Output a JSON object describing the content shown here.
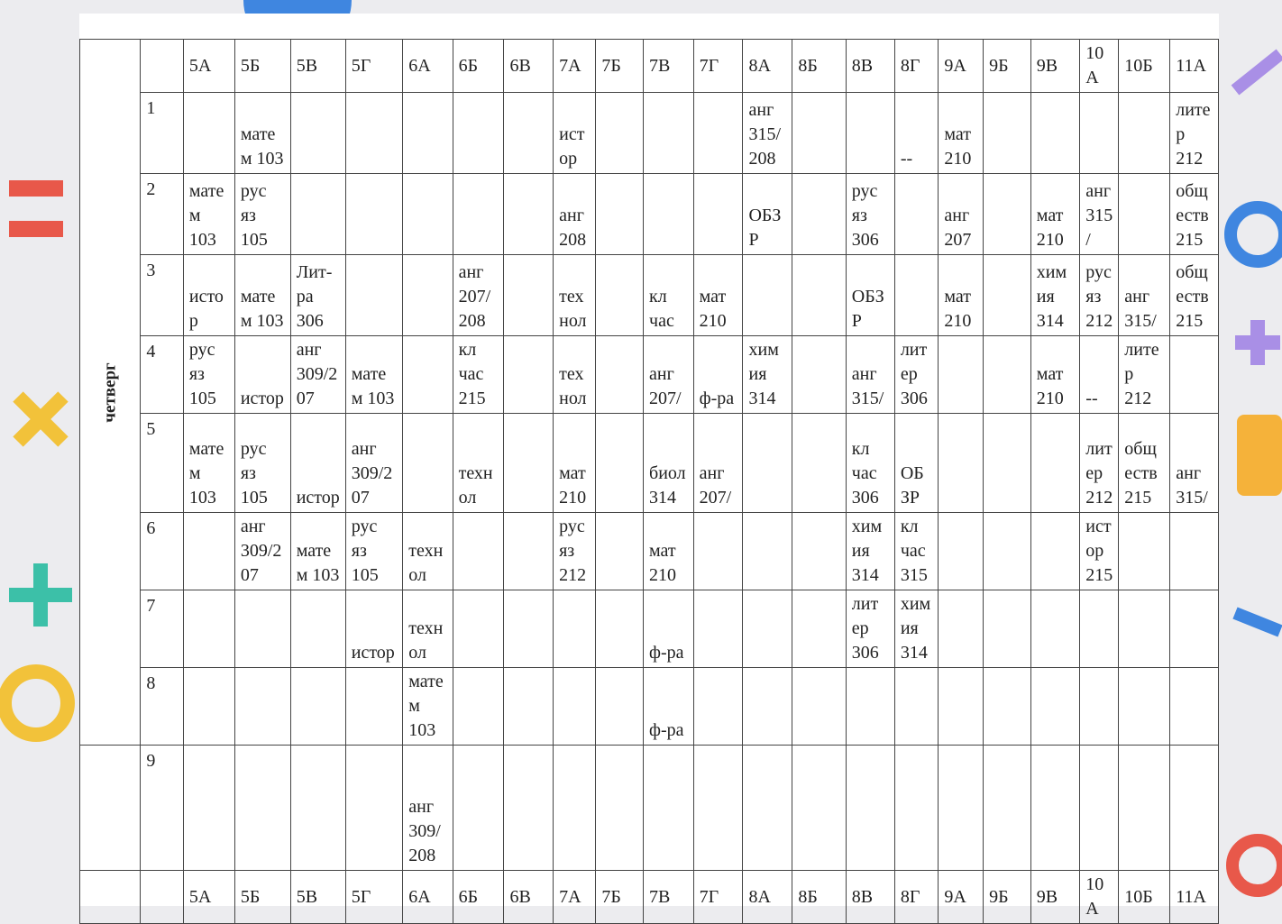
{
  "day": "четверг",
  "table": {
    "columns": [
      "5А",
      "5Б",
      "5В",
      "5Г",
      "6А",
      "6Б",
      "6В",
      "7А",
      "7Б",
      "7В",
      "7Г",
      "8А",
      "8Б",
      "8В",
      "8Г",
      "9А",
      "9Б",
      "9В",
      "10 А",
      "10Б",
      "11А"
    ],
    "rows": [
      {
        "number": "1",
        "cells": [
          null,
          "мате\nм 103",
          null,
          null,
          null,
          null,
          null,
          "ист\nор",
          null,
          null,
          null,
          "анг\n315/\n208",
          null,
          null,
          "--",
          "мат\n210",
          null,
          null,
          null,
          null,
          "лите\nр\n212"
        ]
      },
      {
        "number": "2",
        "cells": [
          "мате\nм\n103",
          "рус\nяз\n105",
          null,
          null,
          null,
          null,
          null,
          "анг\n208",
          null,
          null,
          null,
          "ОБЗ\nР",
          null,
          "рус\nяз\n306",
          null,
          "анг\n207",
          null,
          "мат\n210",
          "анг\n315\n/",
          null,
          "общ\nеств\n215"
        ]
      },
      {
        "number": "3",
        "cells": [
          "исто\nр",
          "мате\nм 103",
          "Лит-\nра\n306",
          null,
          null,
          "анг\n207/\n208",
          null,
          "тех\nнол",
          null,
          "кл\nчас",
          "мат\n210",
          null,
          null,
          "ОБЗ\nР",
          null,
          "мат\n210",
          null,
          "хим\nия\n314",
          "рус\nяз\n212",
          "анг\n315/",
          "общ\nеств\n215"
        ]
      },
      {
        "number": "4",
        "cells": [
          "рус\nяз\n105",
          "истор",
          "анг\n309/2\n07",
          "мате\nм 103",
          null,
          "кл\nчас\n215",
          null,
          "тех\nнол",
          null,
          "анг\n207/",
          "ф-ра",
          "хим\nия\n314",
          null,
          "анг\n315/",
          "лит\nер\n306",
          null,
          null,
          "мат\n210",
          "--",
          "лите\nр\n212",
          null
        ]
      },
      {
        "number": "5",
        "cells": [
          "мате\nм\n103",
          "рус\nяз\n105",
          "истор",
          "анг\n309/2\n07",
          null,
          "техн\nол",
          null,
          "мат\n210",
          null,
          "биол\n314",
          "анг\n207/",
          null,
          null,
          "кл\nчас\n306",
          "ОБ\nЗР",
          null,
          null,
          null,
          "лит\nер\n212",
          "общ\nеств\n215",
          "анг\n315/"
        ]
      },
      {
        "number": "6",
        "cells": [
          null,
          "анг\n309/2\n07",
          "мате\nм 103",
          "рус\nяз\n105",
          "техн\nол",
          null,
          null,
          "рус\nяз\n212",
          null,
          "мат\n210",
          null,
          null,
          null,
          "хим\nия\n314",
          "кл\nчас\n315",
          null,
          null,
          null,
          "ист\nор\n215",
          null,
          null
        ]
      },
      {
        "number": "7",
        "cells": [
          null,
          null,
          null,
          "истор",
          "техн\nол",
          null,
          null,
          null,
          null,
          "ф-ра",
          null,
          null,
          null,
          "лит\nер\n306",
          "хим\nия\n314",
          null,
          null,
          null,
          null,
          null,
          null
        ]
      },
      {
        "number": "8",
        "cells": [
          null,
          null,
          null,
          null,
          "мате\nм\n103",
          null,
          null,
          null,
          null,
          "ф-ра",
          null,
          null,
          null,
          null,
          null,
          null,
          null,
          null,
          null,
          null,
          null
        ]
      },
      {
        "number": "9",
        "cells": [
          null,
          null,
          null,
          null,
          "анг\n309/\n208",
          null,
          null,
          null,
          null,
          null,
          null,
          null,
          null,
          null,
          null,
          null,
          null,
          null,
          null,
          null,
          null
        ]
      }
    ]
  }
}
